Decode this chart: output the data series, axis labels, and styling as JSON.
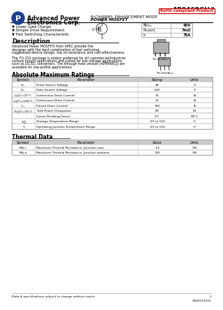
{
  "title": "AP9468GH/J",
  "rohs_text": "RoHS-compliant Product",
  "subtitle1": "N-CHANNEL ENHANCEMENT MODE",
  "subtitle2": "POWER MOSFET",
  "features": [
    "Lower Gate Charge",
    "Simple Drive Requirement",
    "Fast Switching Characteristic"
  ],
  "spec_labels": [
    "BV₉ₛₛ",
    "R₉ₛ(on)",
    "I₉"
  ],
  "spec_values": [
    "40V",
    "7mΩ",
    "75A"
  ],
  "desc_title": "Description",
  "desc1": "Advanced Power MOSFETs from APEC provide the designer with the best combination of fast switching, ruggedized device design, low on-resistance and cost-effectiveness.",
  "desc2": "The TO-252 package is widely preferred for all commercial/industrial surface mount applications and suited for low voltage applications such as DC/DC converters. The through-hole version (AP9468GJ) are available for low-profile applications.",
  "pkg1_label": "TO-252(B±)",
  "pkg2_label": "TO-252(B±)",
  "abs_title": "Absolute Maximum Ratings",
  "abs_headers": [
    "Symbol",
    "Parameter",
    "Rating",
    "Units"
  ],
  "abs_rows": [
    [
      "V₉ₛ",
      "Drain-Source Voltage",
      "40",
      "V"
    ],
    [
      "V₉ₛ",
      "Gate-Source Voltage",
      "±20",
      "V"
    ],
    [
      "I₉@Tⱼ=25°C",
      "Continuous Drain Current¹",
      "75",
      "A"
    ],
    [
      "I₉@Tⱼ=100°C",
      "Continuous Drain Current",
      "57",
      "A"
    ],
    [
      "I₉ₘ",
      "Pulsed Drain Current¹",
      "300",
      "A"
    ],
    [
      "P₉@Tⱼ=25°C",
      "Total Power Dissipation",
      "89",
      "W"
    ],
    [
      "",
      "Linear Derating Factor",
      "0.7",
      "W/°C"
    ],
    [
      "Tₛ₞ₗ",
      "Storage Temperature Range",
      "-55 to 150",
      "°C"
    ],
    [
      "Tⱼ",
      "Operating Junction Temperature Range",
      "-55 to 150",
      "°C"
    ]
  ],
  "thermal_title": "Thermal Data",
  "thermal_headers": [
    "Symbol",
    "Parameter",
    "Value",
    "Units"
  ],
  "thermal_rows": [
    [
      "Rθj-c",
      "Maximum Thermal Resistance, Junction-case",
      "1.4",
      "°/W"
    ],
    [
      "Rθj-a",
      "Maximum Thermal Resistance, Junction-ambient",
      "110",
      "°/W"
    ]
  ],
  "footer_text": "Data & specifications subject to change without notice",
  "footer_page": "1",
  "footer_code": "2068313232",
  "bg": "#ffffff",
  "rohs_color": "#cc0000",
  "blue": "#1e3f8f",
  "gray_header": "#cccccc",
  "table_border": "#999999"
}
